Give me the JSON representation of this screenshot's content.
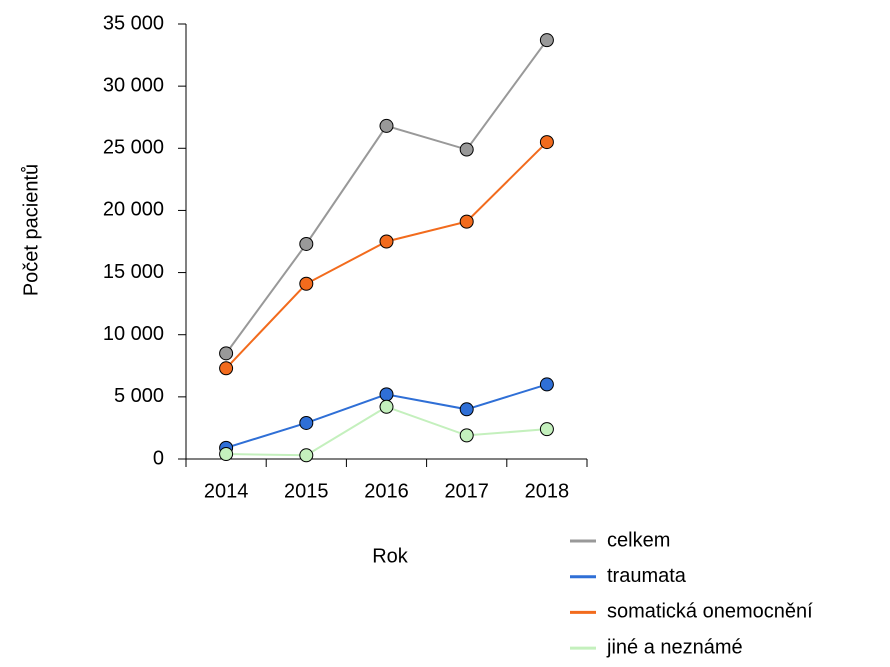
{
  "chart_data": {
    "type": "line",
    "x_label": "Rok",
    "y_label": "Počet pacientů",
    "categories": [
      "2014",
      "2015",
      "2016",
      "2017",
      "2018"
    ],
    "series": [
      {
        "name": "celkem",
        "color": "#999999",
        "values": [
          8500,
          17300,
          26800,
          24900,
          33700
        ]
      },
      {
        "name": "traumata",
        "color": "#2f6fd6",
        "values": [
          900,
          2900,
          5200,
          4000,
          6000
        ]
      },
      {
        "name": "somatická onemocnění",
        "color": "#f26b1d",
        "values": [
          7300,
          14100,
          17500,
          19100,
          25500
        ]
      },
      {
        "name": "jiné a neznámé",
        "color": "#c4f0bd",
        "values": [
          400,
          300,
          4200,
          1900,
          2400
        ]
      }
    ],
    "ylim": [
      0,
      35000
    ],
    "yticks": [
      0,
      {
        "value": 5000,
        "label": "5 000"
      },
      {
        "value": 10000,
        "label": "10 000"
      },
      {
        "value": 15000,
        "label": "15 000"
      },
      {
        "value": 20000,
        "label": "20 000"
      },
      {
        "value": 25000,
        "label": "25 000"
      },
      {
        "value": 30000,
        "label": "30 000"
      },
      {
        "value": 35000,
        "label": "35 000"
      }
    ],
    "grid": false,
    "legend": "bottom-right"
  }
}
